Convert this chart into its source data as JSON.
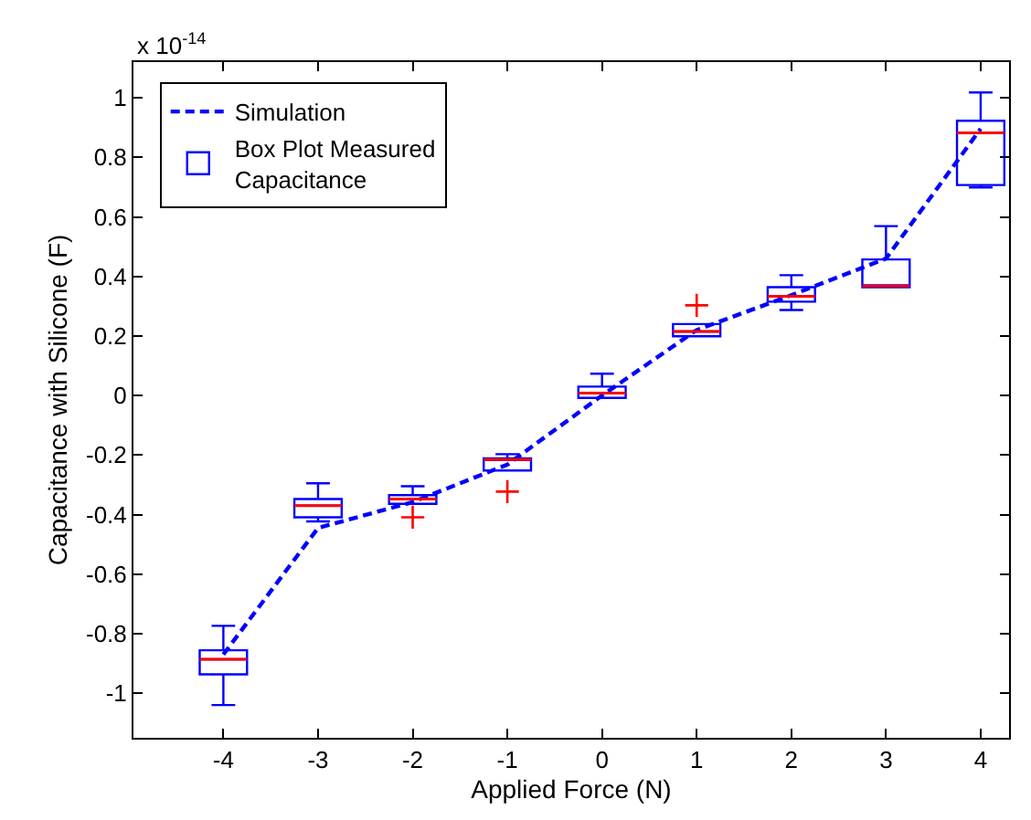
{
  "chart_data": {
    "type": "box",
    "xlabel": "Applied Force (N)",
    "ylabel": "Capacitance with Silicone (F)",
    "annotations": [
      "x 10$^{-14}$"
    ],
    "xlim": [
      -4.95,
      4.3
    ],
    "xticks": [
      -4,
      -3,
      -2,
      -1,
      0,
      1,
      2,
      3,
      4
    ],
    "ylim": [
      -1.15,
      1.12
    ],
    "yticks": [
      -1,
      -0.8,
      -0.6,
      -0.4,
      -0.2,
      0,
      0.2,
      0.4,
      0.6,
      0.8,
      1
    ],
    "legend": "top left",
    "series": [
      {
        "name": "Simulation",
        "type": "line",
        "color": "#0000ff",
        "line_style": "dashed",
        "marker": "none",
        "x": [
          -4,
          -3,
          -2,
          -1,
          0,
          1,
          2,
          3,
          4
        ],
        "values": [
          -0.87,
          -0.445,
          -0.358,
          -0.232,
          0.0,
          0.22,
          0.337,
          0.46,
          0.896
        ]
      },
      {
        "name": "Box Plot Measured Capacitance",
        "color": "#0000ff",
        "x": [
          -4,
          -3,
          -2,
          -1,
          0,
          1,
          2,
          3,
          4
        ],
        "boxes": [
          {
            "low": -1.04,
            "q1": -0.937,
            "median": -0.886,
            "q3": -0.856,
            "high": -0.774
          },
          {
            "low": -0.423,
            "q1": -0.409,
            "median": -0.37,
            "q3": -0.348,
            "high": -0.295
          },
          {
            "low": -0.364,
            "q1": -0.364,
            "median": -0.348,
            "q3": -0.335,
            "high": -0.305,
            "outliers": [
              -0.409
            ]
          },
          {
            "low": -0.252,
            "q1": -0.252,
            "median": -0.215,
            "q3": -0.211,
            "high": -0.197,
            "outliers": [
              -0.323
            ]
          },
          {
            "low": -0.008,
            "q1": -0.008,
            "median": 0.008,
            "q3": 0.03,
            "high": 0.073
          },
          {
            "low": 0.199,
            "q1": 0.199,
            "median": 0.215,
            "q3": 0.24,
            "high": 0.24,
            "outliers": [
              0.303
            ]
          },
          {
            "low": 0.287,
            "q1": 0.315,
            "median": 0.333,
            "q3": 0.364,
            "high": 0.404
          },
          {
            "low": 0.364,
            "q1": 0.364,
            "median": 0.368,
            "q3": 0.457,
            "high": 0.569
          },
          {
            "low": 0.699,
            "q1": 0.707,
            "median": 0.882,
            "q3": 0.923,
            "high": 1.018
          }
        ]
      }
    ]
  }
}
